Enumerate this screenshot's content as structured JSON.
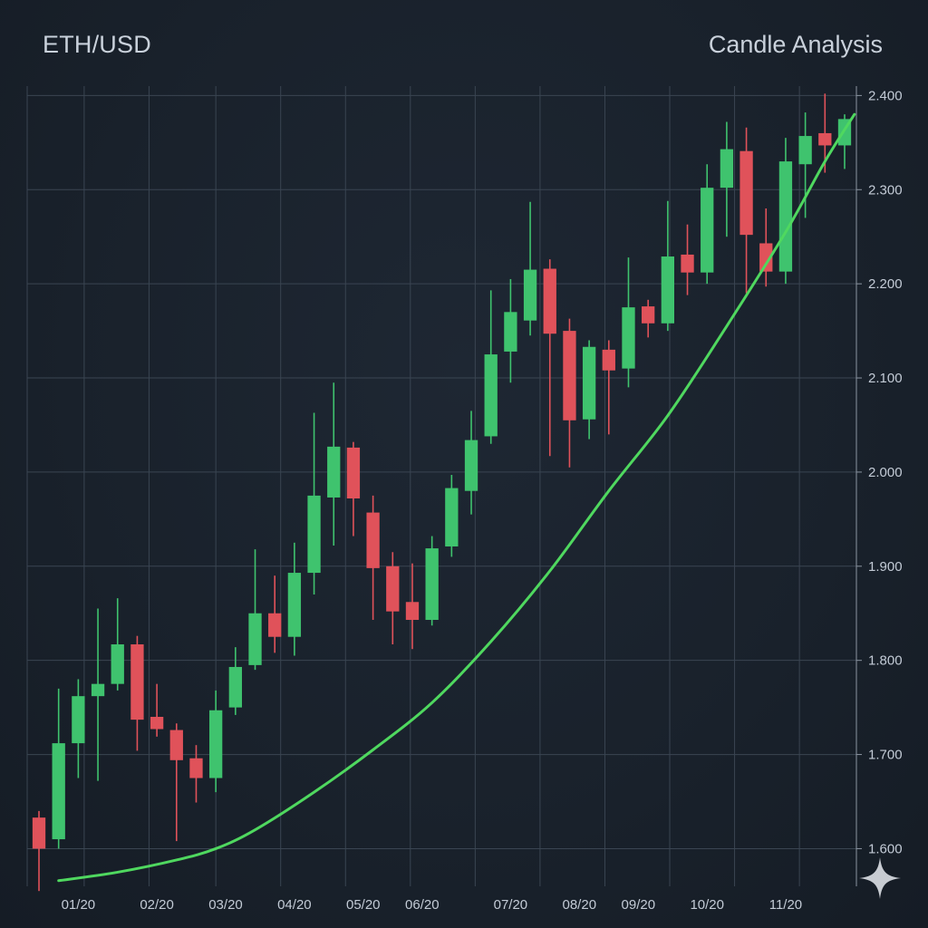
{
  "header": {
    "title": "ETH/USD",
    "subtitle": "Candle Analysis"
  },
  "colors": {
    "background": "#1a222c",
    "grid": "#3a4552",
    "up": "#3fc36e",
    "down": "#e0525a",
    "trend": "#4fd85f",
    "text": "#c3cbd6"
  },
  "chart_data": {
    "type": "candlestick",
    "title": "ETH/USD",
    "subtitle": "Candle Analysis",
    "x_ticks": [
      {
        "label": "01/20",
        "x": 2
      },
      {
        "label": "02/20",
        "x": 6
      },
      {
        "label": "03/20",
        "x": 9.5
      },
      {
        "label": "04/20",
        "x": 13
      },
      {
        "label": "05/20",
        "x": 16.5
      },
      {
        "label": "06/20",
        "x": 19.5
      },
      {
        "label": "07/20",
        "x": 24
      },
      {
        "label": "08/20",
        "x": 27.5
      },
      {
        "label": "09/20",
        "x": 30.5
      },
      {
        "label": "10/20",
        "x": 34
      },
      {
        "label": "11/20",
        "x": 38
      }
    ],
    "x_range": [
      -0.6,
      41.6
    ],
    "y_range": [
      1.56,
      2.41
    ],
    "y_ticks": [
      "1.600",
      "1.700",
      "1.800",
      "1.900",
      "2.000",
      "2.100",
      "2.200",
      "2.300",
      "2.400"
    ],
    "y_tick_values": [
      1.6,
      1.7,
      1.8,
      1.9,
      2.0,
      2.1,
      2.2,
      2.3,
      2.4
    ],
    "candles": [
      {
        "x": 0,
        "open": 1.633,
        "close": 1.6,
        "high": 1.64,
        "low": 1.555
      },
      {
        "x": 1,
        "open": 1.61,
        "close": 1.712,
        "high": 1.77,
        "low": 1.6
      },
      {
        "x": 2,
        "open": 1.712,
        "close": 1.762,
        "high": 1.78,
        "low": 1.675
      },
      {
        "x": 3,
        "open": 1.762,
        "close": 1.775,
        "high": 1.855,
        "low": 1.672
      },
      {
        "x": 4,
        "open": 1.775,
        "close": 1.817,
        "high": 1.866,
        "low": 1.768
      },
      {
        "x": 5,
        "open": 1.817,
        "close": 1.737,
        "high": 1.826,
        "low": 1.704
      },
      {
        "x": 6,
        "open": 1.74,
        "close": 1.727,
        "high": 1.775,
        "low": 1.719
      },
      {
        "x": 7,
        "open": 1.726,
        "close": 1.694,
        "high": 1.733,
        "low": 1.608
      },
      {
        "x": 8,
        "open": 1.696,
        "close": 1.675,
        "high": 1.71,
        "low": 1.649
      },
      {
        "x": 9,
        "open": 1.675,
        "close": 1.747,
        "high": 1.768,
        "low": 1.66
      },
      {
        "x": 10,
        "open": 1.75,
        "close": 1.793,
        "high": 1.814,
        "low": 1.742
      },
      {
        "x": 11,
        "open": 1.795,
        "close": 1.85,
        "high": 1.918,
        "low": 1.79
      },
      {
        "x": 12,
        "open": 1.85,
        "close": 1.825,
        "high": 1.89,
        "low": 1.808
      },
      {
        "x": 13,
        "open": 1.825,
        "close": 1.893,
        "high": 1.925,
        "low": 1.805
      },
      {
        "x": 14,
        "open": 1.893,
        "close": 1.975,
        "high": 2.063,
        "low": 1.87
      },
      {
        "x": 15,
        "open": 1.973,
        "close": 2.027,
        "high": 2.095,
        "low": 1.922
      },
      {
        "x": 16,
        "open": 2.026,
        "close": 1.972,
        "high": 2.032,
        "low": 1.932
      },
      {
        "x": 17,
        "open": 1.957,
        "close": 1.898,
        "high": 1.975,
        "low": 1.843
      },
      {
        "x": 18,
        "open": 1.9,
        "close": 1.852,
        "high": 1.915,
        "low": 1.817
      },
      {
        "x": 19,
        "open": 1.862,
        "close": 1.843,
        "high": 1.903,
        "low": 1.812
      },
      {
        "x": 20,
        "open": 1.843,
        "close": 1.919,
        "high": 1.932,
        "low": 1.837
      },
      {
        "x": 21,
        "open": 1.921,
        "close": 1.983,
        "high": 1.997,
        "low": 1.91
      },
      {
        "x": 22,
        "open": 1.98,
        "close": 2.034,
        "high": 2.065,
        "low": 1.955
      },
      {
        "x": 23,
        "open": 2.038,
        "close": 2.125,
        "high": 2.193,
        "low": 2.03
      },
      {
        "x": 24,
        "open": 2.128,
        "close": 2.17,
        "high": 2.205,
        "low": 2.095
      },
      {
        "x": 25,
        "open": 2.161,
        "close": 2.215,
        "high": 2.287,
        "low": 2.145
      },
      {
        "x": 26,
        "open": 2.216,
        "close": 2.147,
        "high": 2.226,
        "low": 2.017
      },
      {
        "x": 27,
        "open": 2.15,
        "close": 2.055,
        "high": 2.163,
        "low": 2.005
      },
      {
        "x": 28,
        "open": 2.056,
        "close": 2.133,
        "high": 2.14,
        "low": 2.035
      },
      {
        "x": 29,
        "open": 2.13,
        "close": 2.108,
        "high": 2.14,
        "low": 2.04
      },
      {
        "x": 30,
        "open": 2.11,
        "close": 2.175,
        "high": 2.228,
        "low": 2.09
      },
      {
        "x": 31,
        "open": 2.176,
        "close": 2.158,
        "high": 2.183,
        "low": 2.143
      },
      {
        "x": 32,
        "open": 2.158,
        "close": 2.229,
        "high": 2.288,
        "low": 2.15
      },
      {
        "x": 33,
        "open": 2.231,
        "close": 2.212,
        "high": 2.263,
        "low": 2.188
      },
      {
        "x": 34,
        "open": 2.212,
        "close": 2.302,
        "high": 2.327,
        "low": 2.2
      },
      {
        "x": 35,
        "open": 2.302,
        "close": 2.343,
        "high": 2.372,
        "low": 2.25
      },
      {
        "x": 36,
        "open": 2.341,
        "close": 2.252,
        "high": 2.366,
        "low": 2.19
      },
      {
        "x": 37,
        "open": 2.243,
        "close": 2.213,
        "high": 2.28,
        "low": 2.197
      },
      {
        "x": 38,
        "open": 2.213,
        "close": 2.33,
        "high": 2.355,
        "low": 2.2
      },
      {
        "x": 39,
        "open": 2.327,
        "close": 2.357,
        "high": 2.382,
        "low": 2.27
      },
      {
        "x": 40,
        "open": 2.36,
        "close": 2.347,
        "high": 2.402,
        "low": 2.318
      },
      {
        "x": 41,
        "open": 2.347,
        "close": 2.375,
        "high": 2.38,
        "low": 2.322
      }
    ],
    "trend_line": {
      "x": [
        1.0,
        4.0,
        7.0,
        9.0,
        11.0,
        14.0,
        17.0,
        20.0,
        23.0,
        26.0,
        29.0,
        32.0,
        35.0,
        38.0,
        40.0,
        41.5
      ],
      "y": [
        1.566,
        1.575,
        1.588,
        1.6,
        1.62,
        1.66,
        1.705,
        1.755,
        1.82,
        1.895,
        1.98,
        2.06,
        2.155,
        2.255,
        2.33,
        2.38
      ]
    },
    "grid": true,
    "legend": "none"
  }
}
